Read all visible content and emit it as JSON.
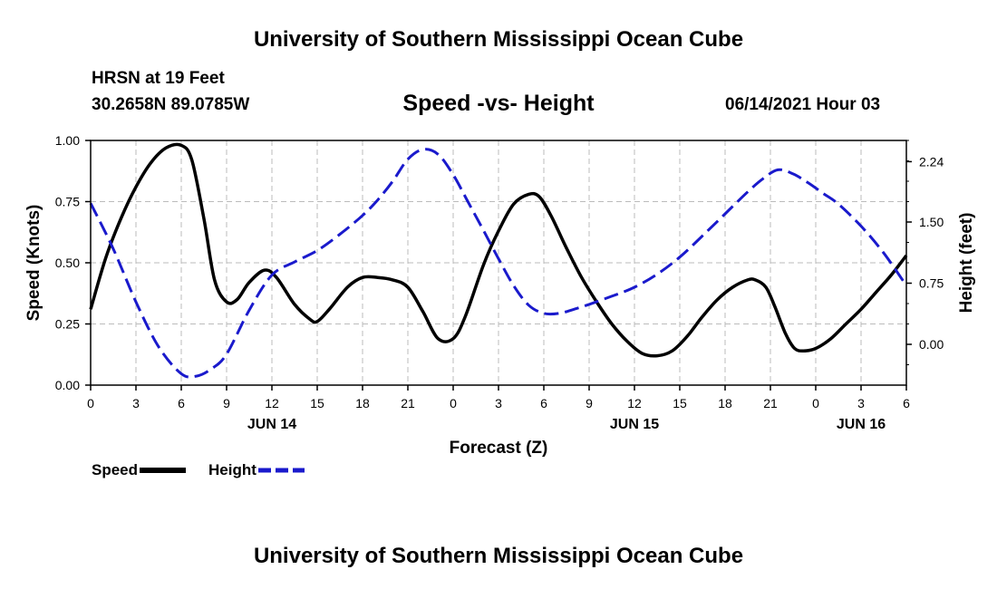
{
  "header": {
    "title": "University of Southern Mississippi Ocean Cube",
    "station": "HRSN at 19 Feet",
    "coordinates": "30.2658N  89.0785W",
    "chart_title": "Speed -vs- Height",
    "datetime": "06/14/2021 Hour 03"
  },
  "footer": {
    "title": "University of Southern Mississippi Ocean Cube"
  },
  "legend": {
    "speed_label": "Speed",
    "height_label": "Height"
  },
  "colors": {
    "speed": "#000000",
    "height": "#1a1acc",
    "grid": "#bbbbbb"
  },
  "chart_data": {
    "type": "line",
    "title": "Speed -vs- Height",
    "xlabel": "Forecast (Z)",
    "ylabel": "Speed (Knots)",
    "y2label": "Height (feet)",
    "xlim": [
      0,
      54
    ],
    "ylim": [
      0,
      1.0
    ],
    "y2lim": [
      -0.5,
      2.5
    ],
    "grid": true,
    "legend_position": "bottom-left",
    "x_ticks": [
      0,
      3,
      6,
      9,
      12,
      15,
      18,
      21,
      24,
      27,
      30,
      33,
      36,
      39,
      42,
      45,
      48,
      51,
      54
    ],
    "x_tick_labels": [
      "0",
      "3",
      "6",
      "9",
      "12",
      "15",
      "18",
      "21",
      "0",
      "3",
      "6",
      "9",
      "12",
      "15",
      "18",
      "21",
      "0",
      "3",
      "6"
    ],
    "date_labels": [
      {
        "x": 12,
        "label": "JUN 14"
      },
      {
        "x": 36,
        "label": "JUN 15"
      },
      {
        "x": 51,
        "label": "JUN 16"
      }
    ],
    "y_ticks": [
      0.0,
      0.25,
      0.5,
      0.75,
      1.0
    ],
    "y_tick_labels": [
      "0.00",
      "0.25",
      "0.50",
      "0.75",
      "1.00"
    ],
    "y2_ticks": [
      0.0,
      0.75,
      1.5,
      2.24
    ],
    "y2_tick_labels": [
      "0.00",
      "0.75",
      "1.50",
      "2.24"
    ],
    "series": [
      {
        "name": "Speed",
        "axis": "left",
        "style": "solid",
        "x": [
          0,
          1,
          2,
          3,
          4,
          5,
          6,
          6.7,
          7.5,
          8.2,
          9,
          9.7,
          10.5,
          11.5,
          12.3,
          13.5,
          14.5,
          15,
          15.8,
          17,
          18,
          19,
          20,
          21,
          22,
          23,
          24,
          24.8,
          26,
          27,
          28,
          29,
          29.7,
          30.5,
          31.5,
          32.5,
          33.5,
          34.5,
          35.5,
          36.5,
          37.5,
          38.5,
          39.5,
          40.5,
          41.5,
          42.5,
          43.5,
          44,
          44.7,
          45.3,
          46,
          46.6,
          47.2,
          48,
          49,
          50,
          51,
          52,
          53,
          54
        ],
        "values": [
          0.31,
          0.52,
          0.68,
          0.81,
          0.91,
          0.97,
          0.98,
          0.92,
          0.68,
          0.43,
          0.34,
          0.35,
          0.42,
          0.47,
          0.44,
          0.33,
          0.27,
          0.26,
          0.31,
          0.4,
          0.44,
          0.44,
          0.43,
          0.4,
          0.3,
          0.19,
          0.19,
          0.28,
          0.49,
          0.63,
          0.74,
          0.78,
          0.77,
          0.69,
          0.56,
          0.44,
          0.34,
          0.25,
          0.18,
          0.13,
          0.12,
          0.14,
          0.2,
          0.28,
          0.35,
          0.4,
          0.43,
          0.43,
          0.4,
          0.32,
          0.21,
          0.15,
          0.14,
          0.15,
          0.19,
          0.25,
          0.31,
          0.38,
          0.45,
          0.53
        ]
      },
      {
        "name": "Height",
        "axis": "right",
        "style": "dashed",
        "x": [
          0,
          1.5,
          3,
          4.5,
          6,
          7,
          8,
          9,
          10.5,
          12,
          13.5,
          15,
          16.5,
          18,
          19,
          20,
          21,
          22,
          23,
          24,
          25,
          26,
          27,
          28,
          29,
          30,
          31,
          32,
          33,
          34.5,
          36,
          37.5,
          39,
          40.5,
          42,
          43.5,
          44.5,
          45.5,
          46.5,
          47.5,
          48.5,
          49.5,
          51,
          52.5,
          54
        ],
        "values": [
          1.73,
          1.17,
          0.52,
          -0.03,
          -0.36,
          -0.39,
          -0.3,
          -0.12,
          0.42,
          0.85,
          1.01,
          1.15,
          1.35,
          1.58,
          1.77,
          2.0,
          2.27,
          2.39,
          2.33,
          2.08,
          1.74,
          1.4,
          1.05,
          0.72,
          0.48,
          0.38,
          0.38,
          0.43,
          0.49,
          0.59,
          0.7,
          0.86,
          1.07,
          1.33,
          1.6,
          1.87,
          2.03,
          2.14,
          2.09,
          1.98,
          1.85,
          1.72,
          1.45,
          1.12,
          0.72
        ]
      }
    ]
  }
}
